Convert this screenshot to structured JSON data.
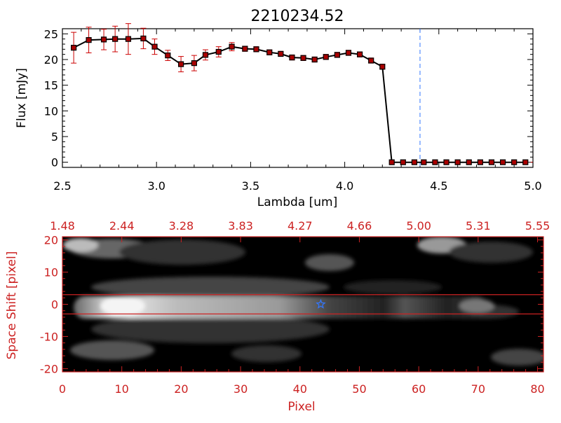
{
  "chart_data": [
    {
      "type": "line",
      "title": "2210234.52",
      "xlabel": "Lambda [um]",
      "ylabel": "Flux [mJy]",
      "xlim": [
        2.5,
        5.0
      ],
      "ylim": [
        -1,
        26
      ],
      "xticks": [
        "2.5",
        "3.0",
        "3.5",
        "4.0",
        "4.5",
        "5.0"
      ],
      "yticks": [
        "0",
        "5",
        "10",
        "15",
        "20",
        "25"
      ],
      "vline_x": 4.4,
      "colors": {
        "line": "#000000",
        "marker": "#aa0000",
        "error": "#cc0000",
        "vline": "#3377ff",
        "zero_line": "#cc0000"
      },
      "series": [
        {
          "x": [
            2.56,
            2.64,
            2.72,
            2.78,
            2.85,
            2.93,
            2.99,
            3.06,
            3.13,
            3.2,
            3.26,
            3.33,
            3.4,
            3.47,
            3.53,
            3.6,
            3.66,
            3.72,
            3.78,
            3.84,
            3.9,
            3.96,
            4.02,
            4.08,
            4.14,
            4.2,
            4.25,
            4.31,
            4.37,
            4.42,
            4.48,
            4.54,
            4.6,
            4.66,
            4.72,
            4.78,
            4.84,
            4.9,
            4.96
          ],
          "y": [
            22.3,
            23.8,
            23.9,
            24.0,
            24.0,
            24.1,
            22.5,
            20.8,
            19.1,
            19.3,
            20.9,
            21.5,
            22.5,
            22.1,
            22.0,
            21.4,
            21.1,
            20.4,
            20.3,
            20.0,
            20.5,
            20.9,
            21.3,
            21.0,
            19.8,
            18.6,
            0,
            0,
            0,
            0,
            0,
            0,
            0,
            0,
            0,
            0,
            0,
            0,
            0
          ],
          "err": [
            3.0,
            2.5,
            2.0,
            2.5,
            3.0,
            2.0,
            1.5,
            1.0,
            1.5,
            1.5,
            1.0,
            1.0,
            0.8,
            0.5,
            0.5,
            0.5,
            0.5,
            0.5,
            0.5,
            0.5,
            0.5,
            0.5,
            0.5,
            0.5,
            0.5,
            0.5,
            0,
            0,
            0,
            0,
            0,
            0,
            0,
            0,
            0,
            0,
            0,
            0,
            0
          ]
        }
      ]
    },
    {
      "type": "heatmap",
      "xlabel": "Pixel",
      "ylabel": "Space Shift [pixel]",
      "xlim": [
        0,
        81
      ],
      "ylim": [
        -21,
        21
      ],
      "xticks": [
        "0",
        "10",
        "20",
        "30",
        "40",
        "50",
        "60",
        "70",
        "80"
      ],
      "yticks": [
        "-20",
        "-10",
        "0",
        "10",
        "20"
      ],
      "top_axis_ticks": [
        "1.48",
        "2.44",
        "3.28",
        "3.83",
        "4.27",
        "4.66",
        "5.00",
        "5.31",
        "5.55"
      ],
      "extraction_window": [
        -3,
        3
      ],
      "marker_position": {
        "x": 43.5,
        "y": 0
      },
      "colors": {
        "axis": "#cc2222",
        "box_lines": "#cc2222",
        "marker": "#3377ff"
      }
    }
  ]
}
